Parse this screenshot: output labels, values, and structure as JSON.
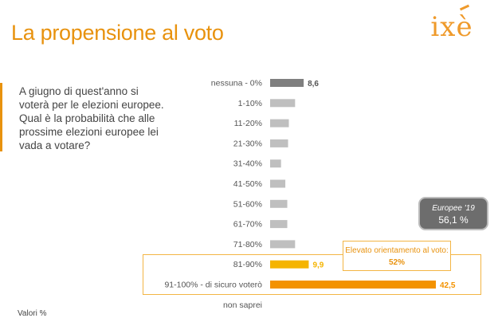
{
  "header": {
    "title": "La propensione al voto",
    "logo_text": "ixè"
  },
  "question": "A giugno di quest'anno si\nvoterà per le elezioni europee.\nQual è la probabilità che alle\nprossime elezioni europee lei\nvada a votare?",
  "footnote": "Valori %",
  "callout": {
    "text": "Elevato orientamento al voto:",
    "value": "52%"
  },
  "pill": {
    "title": "Europee '19",
    "value": "56,1 %"
  },
  "colors": {
    "accent": "#e8920e",
    "bar_gray": "#bfbfbf",
    "bar_dark": "#7f7f7f",
    "bar_yellow": "#f5b400",
    "bar_orange": "#f39200"
  },
  "chart_data": {
    "type": "bar",
    "orientation": "horizontal",
    "categories": [
      "nessuna - 0%",
      "1-10%",
      "11-20%",
      "21-30%",
      "31-40%",
      "41-50%",
      "51-60%",
      "61-70%",
      "71-80%",
      "81-90%",
      "91-100% - di sicuro voterò",
      "non saprei"
    ],
    "values": [
      8.6,
      6.4,
      4.8,
      4.6,
      2.8,
      3.9,
      4.4,
      4.4,
      6.4,
      9.9,
      42.5,
      0
    ],
    "value_labels": [
      "8,6",
      "",
      "",
      "",
      "",
      "",
      "",
      "",
      "",
      "9,9",
      "42,5",
      ""
    ],
    "bar_colors": [
      "#7f7f7f",
      "#bfbfbf",
      "#bfbfbf",
      "#bfbfbf",
      "#bfbfbf",
      "#bfbfbf",
      "#bfbfbf",
      "#bfbfbf",
      "#bfbfbf",
      "#f5b400",
      "#f39200",
      "#bfbfbf"
    ],
    "xlim": [
      0,
      50
    ],
    "title": "",
    "xlabel": "",
    "ylabel": ""
  }
}
